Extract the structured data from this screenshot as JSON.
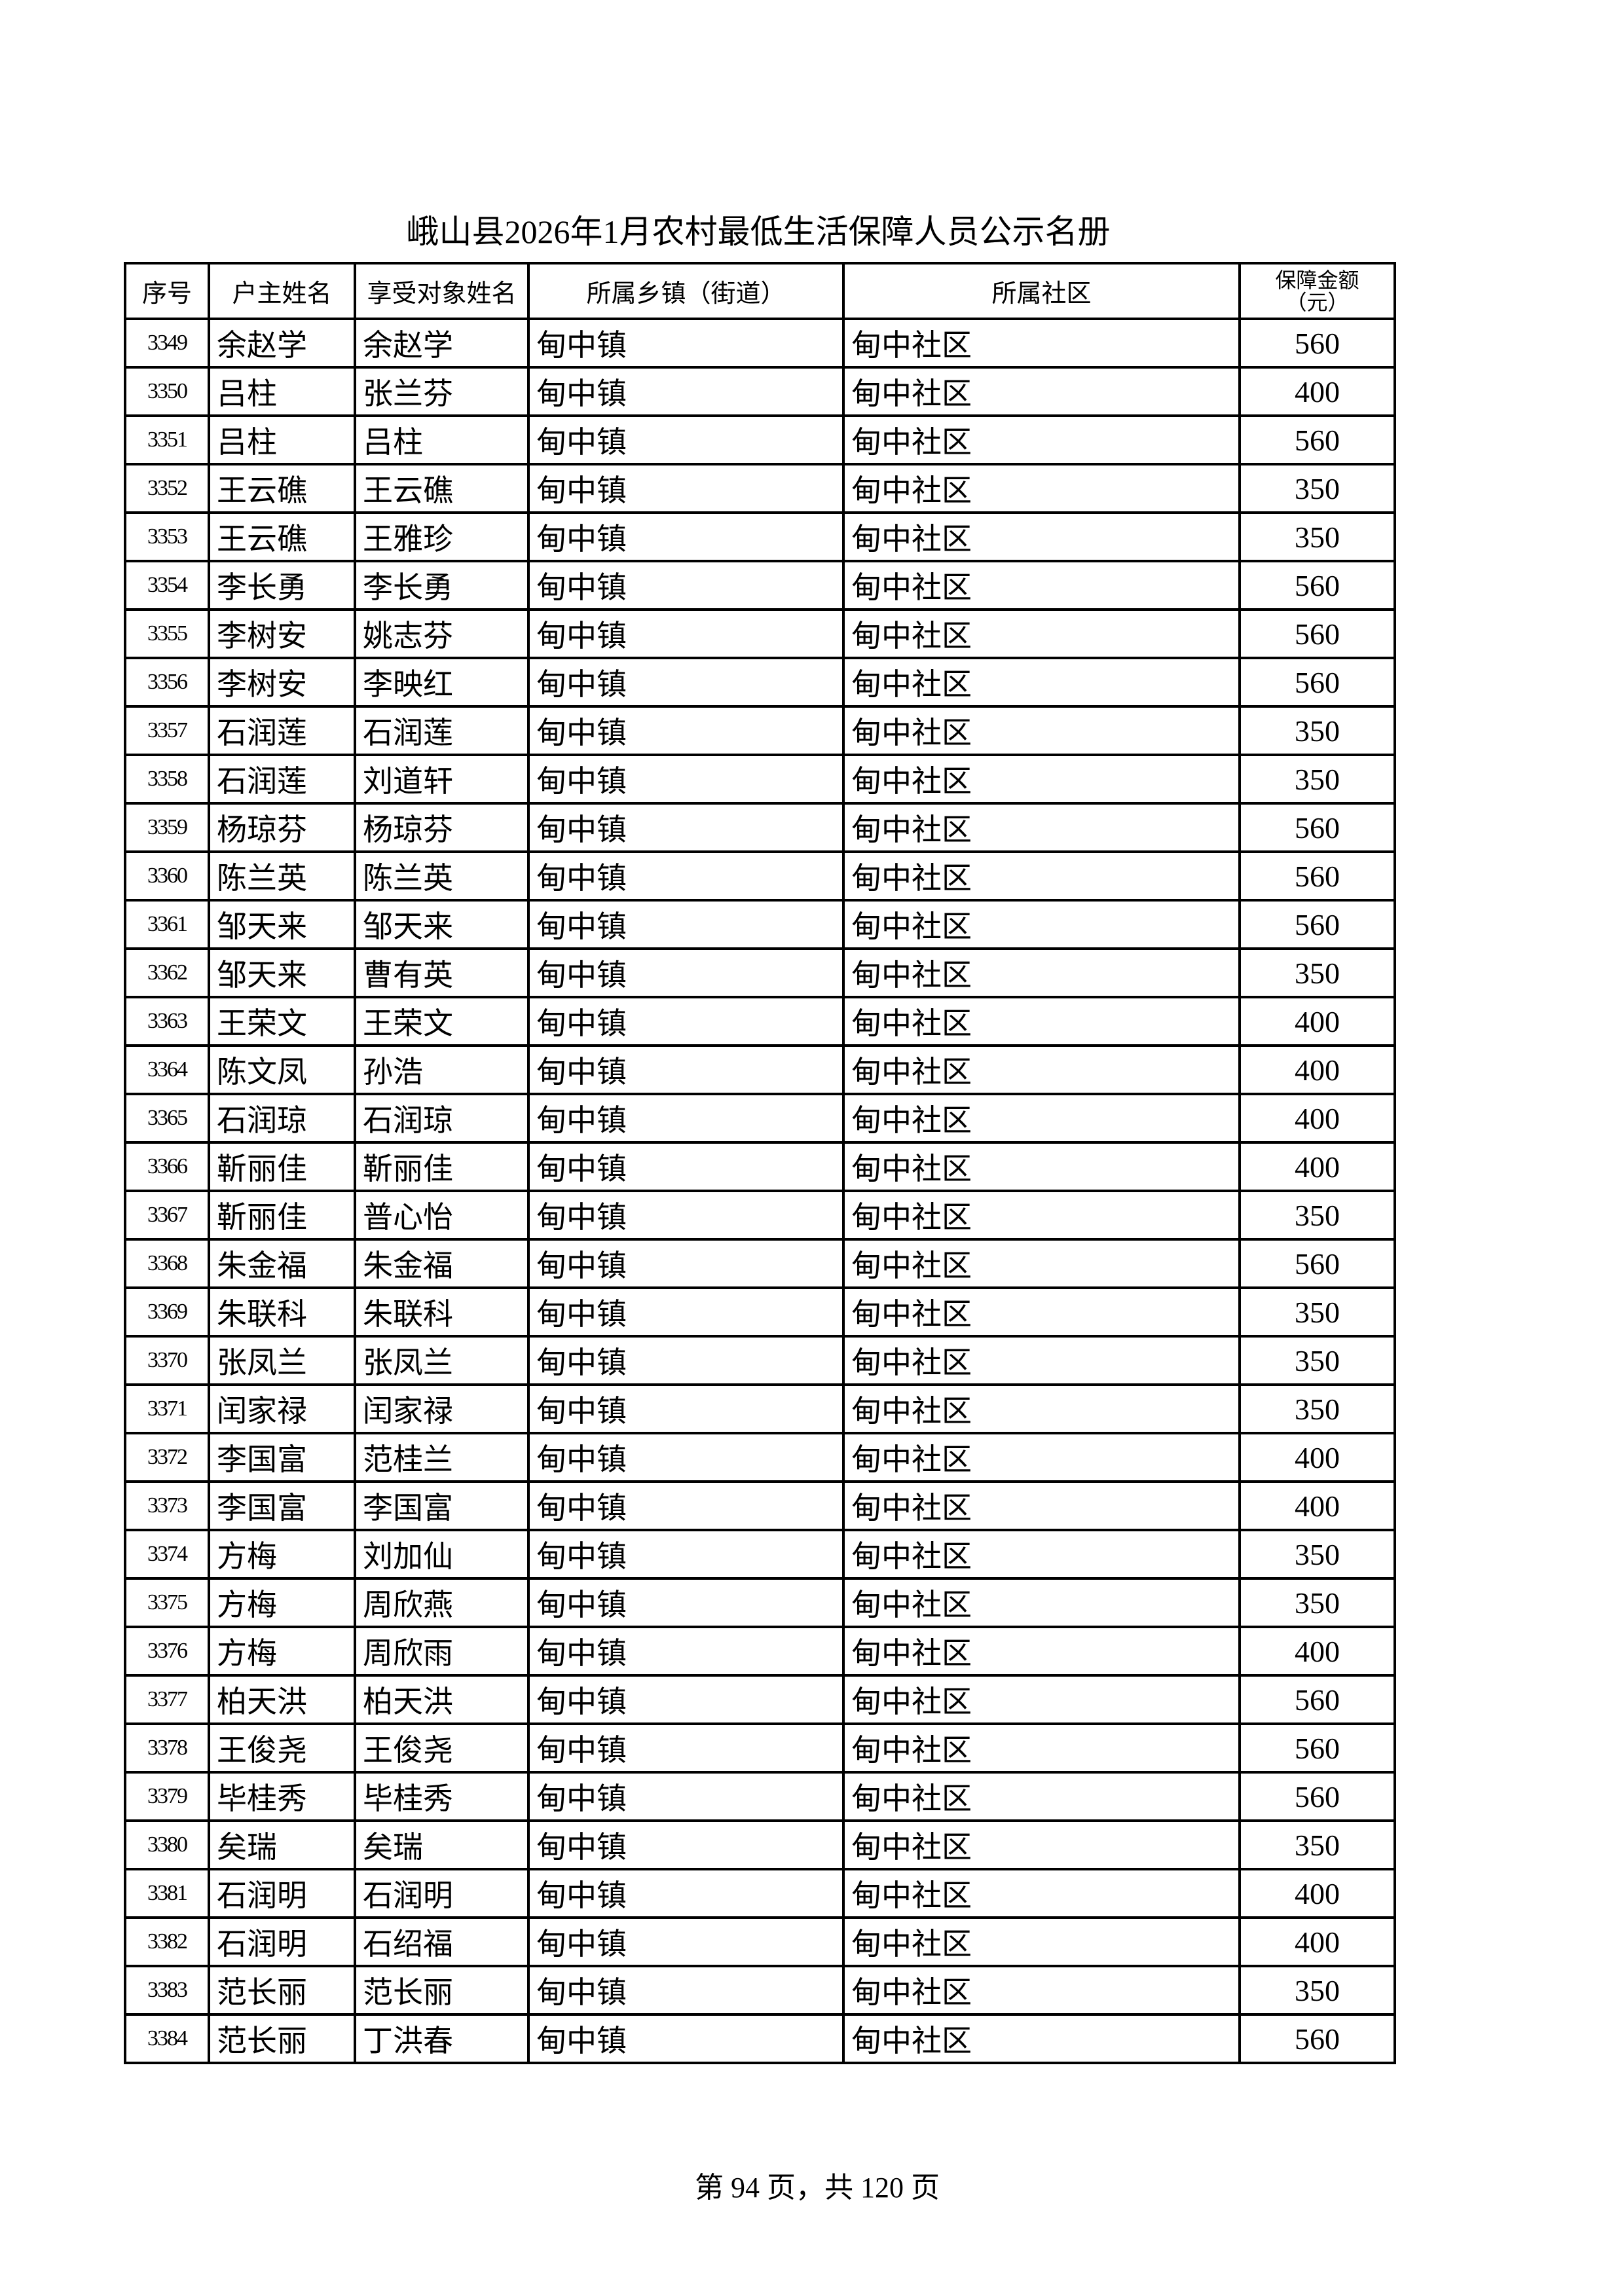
{
  "title": "峨山县2026年1月农村最低生活保障人员公示名册",
  "columns": [
    "序号",
    "户主姓名",
    "享受对象姓名",
    "所属乡镇（街道）",
    "所属社区",
    "保障金额（元）"
  ],
  "rows": [
    [
      "3349",
      "余赵学",
      "余赵学",
      "甸中镇",
      "甸中社区",
      "560"
    ],
    [
      "3350",
      "吕柱",
      "张兰芬",
      "甸中镇",
      "甸中社区",
      "400"
    ],
    [
      "3351",
      "吕柱",
      "吕柱",
      "甸中镇",
      "甸中社区",
      "560"
    ],
    [
      "3352",
      "王云礁",
      "王云礁",
      "甸中镇",
      "甸中社区",
      "350"
    ],
    [
      "3353",
      "王云礁",
      "王雅珍",
      "甸中镇",
      "甸中社区",
      "350"
    ],
    [
      "3354",
      "李长勇",
      "李长勇",
      "甸中镇",
      "甸中社区",
      "560"
    ],
    [
      "3355",
      "李树安",
      "姚志芬",
      "甸中镇",
      "甸中社区",
      "560"
    ],
    [
      "3356",
      "李树安",
      "李映红",
      "甸中镇",
      "甸中社区",
      "560"
    ],
    [
      "3357",
      "石润莲",
      "石润莲",
      "甸中镇",
      "甸中社区",
      "350"
    ],
    [
      "3358",
      "石润莲",
      "刘道轩",
      "甸中镇",
      "甸中社区",
      "350"
    ],
    [
      "3359",
      "杨琼芬",
      "杨琼芬",
      "甸中镇",
      "甸中社区",
      "560"
    ],
    [
      "3360",
      "陈兰英",
      "陈兰英",
      "甸中镇",
      "甸中社区",
      "560"
    ],
    [
      "3361",
      "邹天来",
      "邹天来",
      "甸中镇",
      "甸中社区",
      "560"
    ],
    [
      "3362",
      "邹天来",
      "曹有英",
      "甸中镇",
      "甸中社区",
      "350"
    ],
    [
      "3363",
      "王荣文",
      "王荣文",
      "甸中镇",
      "甸中社区",
      "400"
    ],
    [
      "3364",
      "陈文凤",
      "孙浩",
      "甸中镇",
      "甸中社区",
      "400"
    ],
    [
      "3365",
      "石润琼",
      "石润琼",
      "甸中镇",
      "甸中社区",
      "400"
    ],
    [
      "3366",
      "靳丽佳",
      "靳丽佳",
      "甸中镇",
      "甸中社区",
      "400"
    ],
    [
      "3367",
      "靳丽佳",
      "普心怡",
      "甸中镇",
      "甸中社区",
      "350"
    ],
    [
      "3368",
      "朱金福",
      "朱金福",
      "甸中镇",
      "甸中社区",
      "560"
    ],
    [
      "3369",
      "朱联科",
      "朱联科",
      "甸中镇",
      "甸中社区",
      "350"
    ],
    [
      "3370",
      "张凤兰",
      "张凤兰",
      "甸中镇",
      "甸中社区",
      "350"
    ],
    [
      "3371",
      "闰家禄",
      "闰家禄",
      "甸中镇",
      "甸中社区",
      "350"
    ],
    [
      "3372",
      "李国富",
      "范桂兰",
      "甸中镇",
      "甸中社区",
      "400"
    ],
    [
      "3373",
      "李国富",
      "李国富",
      "甸中镇",
      "甸中社区",
      "400"
    ],
    [
      "3374",
      "方梅",
      "刘加仙",
      "甸中镇",
      "甸中社区",
      "350"
    ],
    [
      "3375",
      "方梅",
      "周欣燕",
      "甸中镇",
      "甸中社区",
      "350"
    ],
    [
      "3376",
      "方梅",
      "周欣雨",
      "甸中镇",
      "甸中社区",
      "400"
    ],
    [
      "3377",
      "柏天洪",
      "柏天洪",
      "甸中镇",
      "甸中社区",
      "560"
    ],
    [
      "3378",
      "王俊尧",
      "王俊尧",
      "甸中镇",
      "甸中社区",
      "560"
    ],
    [
      "3379",
      "毕桂秀",
      "毕桂秀",
      "甸中镇",
      "甸中社区",
      "560"
    ],
    [
      "3380",
      "矣瑞",
      "矣瑞",
      "甸中镇",
      "甸中社区",
      "350"
    ],
    [
      "3381",
      "石润明",
      "石润明",
      "甸中镇",
      "甸中社区",
      "400"
    ],
    [
      "3382",
      "石润明",
      "石绍福",
      "甸中镇",
      "甸中社区",
      "400"
    ],
    [
      "3383",
      "范长丽",
      "范长丽",
      "甸中镇",
      "甸中社区",
      "350"
    ],
    [
      "3384",
      "范长丽",
      "丁洪春",
      "甸中镇",
      "甸中社区",
      "560"
    ]
  ],
  "footer": "第 94 页，共 120 页"
}
